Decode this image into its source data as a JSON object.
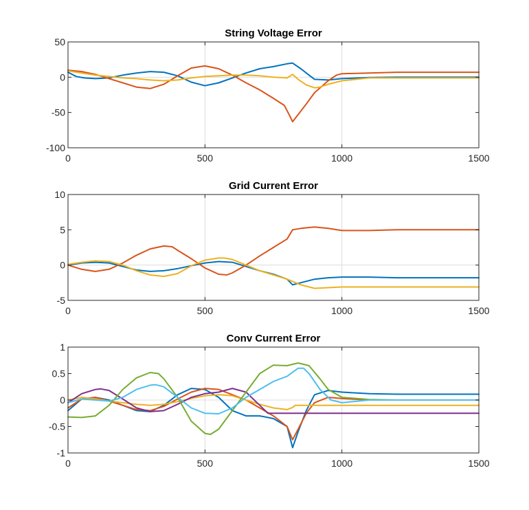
{
  "chart_data": [
    {
      "type": "line",
      "title": "String Voltage Error",
      "xlim": [
        0,
        1500
      ],
      "ylim": [
        -100,
        50
      ],
      "xticks": [
        0,
        500,
        1000,
        1500
      ],
      "yticks": [
        -100,
        -50,
        0,
        50
      ],
      "xtick_labels": [
        "0",
        "500",
        "1000",
        "1500"
      ],
      "ytick_labels": [
        "-100",
        "-50",
        "0",
        "50"
      ],
      "xgrid": [
        500,
        1000
      ],
      "series": [
        {
          "name": "series-1",
          "color": "#0072BD",
          "x": [
            0,
            30,
            60,
            100,
            150,
            200,
            250,
            300,
            350,
            400,
            450,
            500,
            550,
            600,
            650,
            700,
            750,
            800,
            820,
            850,
            880,
            900,
            950,
            1000,
            1100,
            1200,
            1500
          ],
          "y": [
            7,
            1,
            -1,
            -2,
            -1,
            3,
            6,
            8,
            7,
            2,
            -7,
            -12,
            -8,
            -1,
            6,
            12,
            15,
            19,
            20,
            12,
            3,
            -3,
            -4,
            -2,
            -0.5,
            0,
            0
          ]
        },
        {
          "name": "series-2",
          "color": "#D95319",
          "x": [
            0,
            50,
            100,
            150,
            200,
            250,
            300,
            350,
            400,
            450,
            500,
            550,
            600,
            650,
            700,
            750,
            790,
            810,
            820,
            840,
            870,
            900,
            950,
            980,
            1000,
            1100,
            1200,
            1500
          ],
          "y": [
            10,
            8,
            4,
            -2,
            -8,
            -14,
            -16,
            -10,
            2,
            13,
            16,
            12,
            3,
            -8,
            -18,
            -30,
            -40,
            -55,
            -63,
            -53,
            -38,
            -22,
            -5,
            3,
            5,
            6,
            7,
            7
          ]
        },
        {
          "name": "series-3",
          "color": "#EDB120",
          "x": [
            0,
            50,
            100,
            150,
            200,
            250,
            300,
            350,
            400,
            450,
            500,
            550,
            600,
            650,
            700,
            750,
            800,
            820,
            840,
            870,
            900,
            920,
            950,
            1000,
            1100,
            1500
          ],
          "y": [
            9,
            6,
            3,
            1,
            -1,
            -2,
            -4,
            -5,
            -4,
            -1,
            1,
            2,
            3,
            3,
            2,
            0,
            -1,
            4,
            -3,
            -11,
            -15,
            -14,
            -10,
            -5,
            -1,
            -1
          ]
        }
      ]
    },
    {
      "type": "line",
      "title": "Grid Current Error",
      "xlim": [
        0,
        1500
      ],
      "ylim": [
        -5,
        10
      ],
      "xticks": [
        0,
        500,
        1000,
        1500
      ],
      "yticks": [
        -5,
        0,
        5,
        10
      ],
      "xtick_labels": [
        "0",
        "500",
        "1000",
        "1500"
      ],
      "ytick_labels": [
        "-5",
        "0",
        "5",
        "10"
      ],
      "xgrid": [
        500,
        1000
      ],
      "series": [
        {
          "name": "series-1",
          "color": "#0072BD",
          "x": [
            0,
            50,
            100,
            150,
            200,
            250,
            300,
            350,
            400,
            450,
            500,
            550,
            600,
            650,
            700,
            750,
            800,
            820,
            850,
            900,
            950,
            1000,
            1100,
            1200,
            1500
          ],
          "y": [
            0,
            0.3,
            0.4,
            0.3,
            -0.2,
            -0.7,
            -0.9,
            -0.8,
            -0.5,
            -0.1,
            0.3,
            0.5,
            0.4,
            -0.2,
            -0.8,
            -1.3,
            -2,
            -2.8,
            -2.5,
            -2,
            -1.8,
            -1.7,
            -1.7,
            -1.8,
            -1.8
          ]
        },
        {
          "name": "series-2",
          "color": "#D95319",
          "x": [
            0,
            50,
            100,
            150,
            200,
            250,
            300,
            350,
            380,
            400,
            450,
            500,
            550,
            580,
            600,
            650,
            700,
            750,
            800,
            820,
            850,
            900,
            950,
            1000,
            1100,
            1200,
            1500
          ],
          "y": [
            0,
            -0.6,
            -0.9,
            -0.6,
            0.3,
            1.4,
            2.3,
            2.7,
            2.6,
            2.1,
            0.9,
            -0.4,
            -1.3,
            -1.4,
            -1.1,
            0,
            1.3,
            2.5,
            3.7,
            5,
            5.2,
            5.4,
            5.2,
            4.9,
            4.9,
            5,
            5
          ]
        },
        {
          "name": "series-3",
          "color": "#EDB120",
          "x": [
            0,
            50,
            100,
            150,
            200,
            250,
            300,
            350,
            400,
            450,
            500,
            550,
            570,
            600,
            650,
            700,
            750,
            800,
            850,
            900,
            950,
            1000,
            1200,
            1500
          ],
          "y": [
            0.1,
            0.4,
            0.6,
            0.5,
            0,
            -0.8,
            -1.4,
            -1.6,
            -1.2,
            -0.1,
            0.7,
            1,
            1,
            0.8,
            0,
            -0.8,
            -1.4,
            -2,
            -2.8,
            -3.3,
            -3.2,
            -3.1,
            -3.1,
            -3.1
          ]
        }
      ]
    },
    {
      "type": "line",
      "title": "Conv Current Error",
      "xlim": [
        0,
        1500
      ],
      "ylim": [
        -1,
        1
      ],
      "xticks": [
        0,
        500,
        1000,
        1500
      ],
      "yticks": [
        -1,
        -0.5,
        0,
        0.5,
        1
      ],
      "xtick_labels": [
        "0",
        "500",
        "1000",
        "1500"
      ],
      "ytick_labels": [
        "-1",
        "-0.5",
        "0",
        "0.5",
        "1"
      ],
      "xgrid": [
        500,
        1000
      ],
      "series": [
        {
          "name": "series-1",
          "color": "#0072BD",
          "x": [
            0,
            50,
            100,
            150,
            200,
            250,
            300,
            350,
            400,
            450,
            500,
            550,
            600,
            650,
            700,
            750,
            800,
            820,
            840,
            870,
            900,
            950,
            1000,
            1100,
            1200,
            1500
          ],
          "y": [
            -0.2,
            0.02,
            0.05,
            0,
            -0.1,
            -0.2,
            -0.22,
            -0.1,
            0.1,
            0.22,
            0.2,
            0.05,
            -0.2,
            -0.3,
            -0.3,
            -0.35,
            -0.5,
            -0.9,
            -0.6,
            -0.2,
            0.1,
            0.18,
            0.15,
            0.12,
            0.11,
            0.11
          ]
        },
        {
          "name": "series-2",
          "color": "#D95319",
          "x": [
            0,
            50,
            100,
            150,
            200,
            250,
            300,
            350,
            400,
            450,
            500,
            550,
            600,
            650,
            700,
            750,
            800,
            820,
            840,
            870,
            900,
            950,
            1000,
            1100,
            1500
          ],
          "y": [
            -0.15,
            0.02,
            0.05,
            -0.02,
            -0.1,
            -0.18,
            -0.2,
            -0.12,
            0.02,
            0.15,
            0.22,
            0.2,
            0.1,
            0,
            -0.15,
            -0.3,
            -0.5,
            -0.75,
            -0.55,
            -0.25,
            -0.05,
            0.05,
            0.03,
            0,
            0
          ]
        },
        {
          "name": "series-3",
          "color": "#EDB120",
          "x": [
            0,
            50,
            100,
            150,
            200,
            250,
            300,
            350,
            400,
            450,
            500,
            550,
            600,
            650,
            700,
            750,
            800,
            820,
            830,
            1000,
            1500
          ],
          "y": [
            0,
            0.05,
            0.02,
            -0.02,
            -0.05,
            -0.08,
            -0.1,
            -0.08,
            -0.03,
            0.03,
            0.08,
            0.1,
            0.08,
            0,
            -0.08,
            -0.15,
            -0.18,
            -0.14,
            -0.1,
            -0.1,
            -0.1
          ]
        },
        {
          "name": "series-4",
          "color": "#7E2F8E",
          "x": [
            0,
            50,
            100,
            120,
            150,
            200,
            250,
            300,
            350,
            400,
            450,
            500,
            550,
            600,
            650,
            700,
            730,
            800,
            1000,
            1500
          ],
          "y": [
            -0.05,
            0.12,
            0.2,
            0.21,
            0.18,
            0.02,
            -0.15,
            -0.22,
            -0.2,
            -0.08,
            0.05,
            0.12,
            0.15,
            0.22,
            0.15,
            -0.1,
            -0.25,
            -0.25,
            -0.25,
            -0.25
          ]
        },
        {
          "name": "series-5",
          "color": "#77AC30",
          "x": [
            0,
            50,
            100,
            150,
            200,
            250,
            300,
            330,
            350,
            400,
            450,
            500,
            520,
            550,
            600,
            650,
            700,
            750,
            800,
            840,
            880,
            920,
            950,
            1000,
            1100,
            1200,
            1500
          ],
          "y": [
            -0.32,
            -0.33,
            -0.3,
            -0.1,
            0.2,
            0.42,
            0.52,
            0.5,
            0.4,
            0.05,
            -0.4,
            -0.63,
            -0.65,
            -0.55,
            -0.2,
            0.15,
            0.5,
            0.66,
            0.65,
            0.7,
            0.65,
            0.4,
            0.2,
            0.05,
            0.01,
            0,
            0
          ]
        },
        {
          "name": "series-6",
          "color": "#4DBEEE",
          "x": [
            0,
            50,
            100,
            150,
            200,
            250,
            300,
            320,
            350,
            400,
            450,
            500,
            550,
            600,
            650,
            700,
            750,
            800,
            840,
            860,
            880,
            920,
            960,
            1000,
            1100,
            1500
          ],
          "y": [
            -0.05,
            0.02,
            0,
            -0.02,
            0.05,
            0.2,
            0.28,
            0.29,
            0.25,
            0.05,
            -0.15,
            -0.25,
            -0.26,
            -0.15,
            0.05,
            0.2,
            0.35,
            0.45,
            0.6,
            0.6,
            0.5,
            0.2,
            0,
            -0.05,
            0,
            0
          ]
        }
      ]
    }
  ]
}
